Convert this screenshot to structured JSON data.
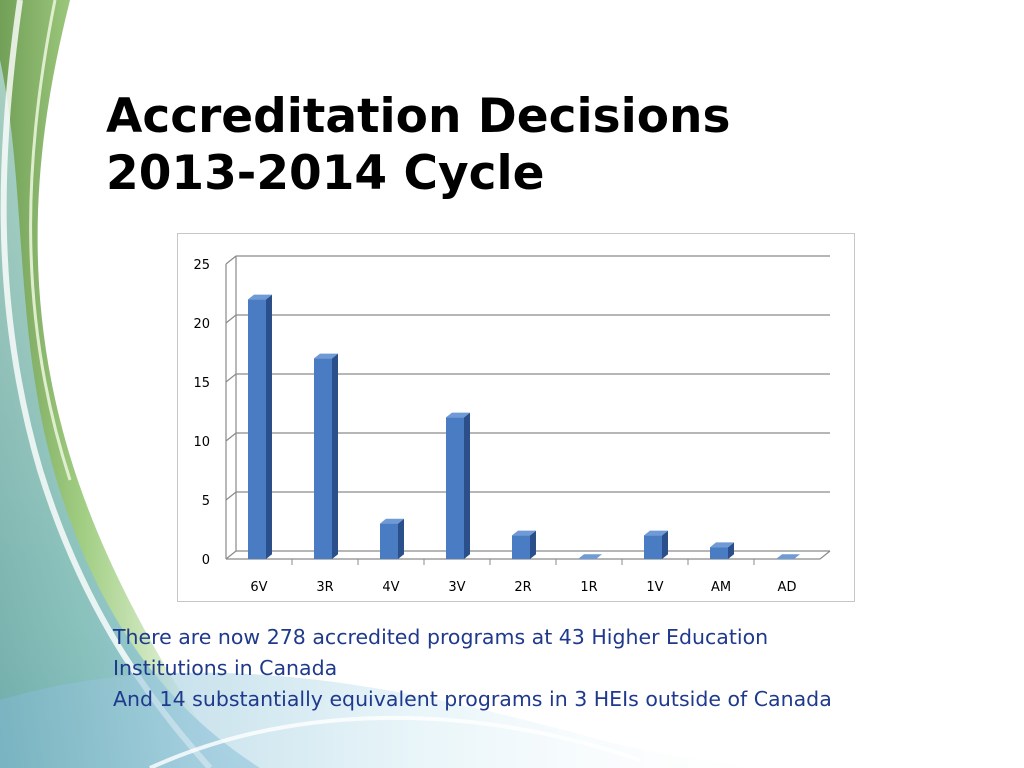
{
  "title": {
    "line1": "Accreditation Decisions",
    "line2": "2013-2014 Cycle"
  },
  "caption": {
    "line1": "There are now 278 accredited programs at 43 Higher Education",
    "line2": "Institutions in Canada",
    "line3": "And 14 substantially equivalent programs in 3 HEIs outside of Canada"
  },
  "colors": {
    "bar_front": "#4a7cc4",
    "bar_side": "#2a4f8a",
    "bar_top": "#6f9ad6",
    "gridline": "#8a8a8a",
    "caption_text": "#1f3a8c"
  },
  "chart_data": {
    "type": "bar",
    "title": "",
    "xlabel": "",
    "ylabel": "",
    "categories": [
      "6V",
      "3R",
      "4V",
      "3V",
      "2R",
      "1R",
      "1V",
      "AM",
      "AD"
    ],
    "values": [
      22,
      17,
      3,
      12,
      2,
      0,
      2,
      1,
      0
    ],
    "ylim": [
      0,
      25
    ],
    "yticks": [
      0,
      5,
      10,
      15,
      20,
      25
    ],
    "grid": true,
    "legend": "none",
    "style": "3d-column"
  }
}
